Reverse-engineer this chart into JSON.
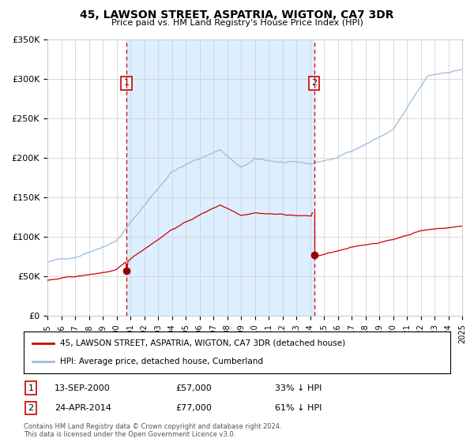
{
  "title": "45, LAWSON STREET, ASPATRIA, WIGTON, CA7 3DR",
  "subtitle": "Price paid vs. HM Land Registry's House Price Index (HPI)",
  "legend_entry1": "45, LAWSON STREET, ASPATRIA, WIGTON, CA7 3DR (detached house)",
  "legend_entry2": "HPI: Average price, detached house, Cumberland",
  "annotation1_date": "13-SEP-2000",
  "annotation1_price": "£57,000",
  "annotation1_pct": "33% ↓ HPI",
  "annotation1_year": 2000.71,
  "annotation1_value": 57000,
  "annotation2_date": "24-APR-2014",
  "annotation2_price": "£77,000",
  "annotation2_pct": "61% ↓ HPI",
  "annotation2_year": 2014.29,
  "annotation2_value": 77000,
  "footer1": "Contains HM Land Registry data © Crown copyright and database right 2024.",
  "footer2": "This data is licensed under the Open Government Licence v3.0.",
  "xmin": 1995,
  "xmax": 2025,
  "ymin": 0,
  "ymax": 350000,
  "background_color": "#ffffff",
  "plot_bg_color": "#ffffff",
  "shaded_region_color": "#ddeeff",
  "grid_color": "#cccccc",
  "hpi_line_color": "#99bbdd",
  "price_line_color": "#cc0000",
  "dashed_line_color": "#cc0000",
  "marker_color": "#990000"
}
